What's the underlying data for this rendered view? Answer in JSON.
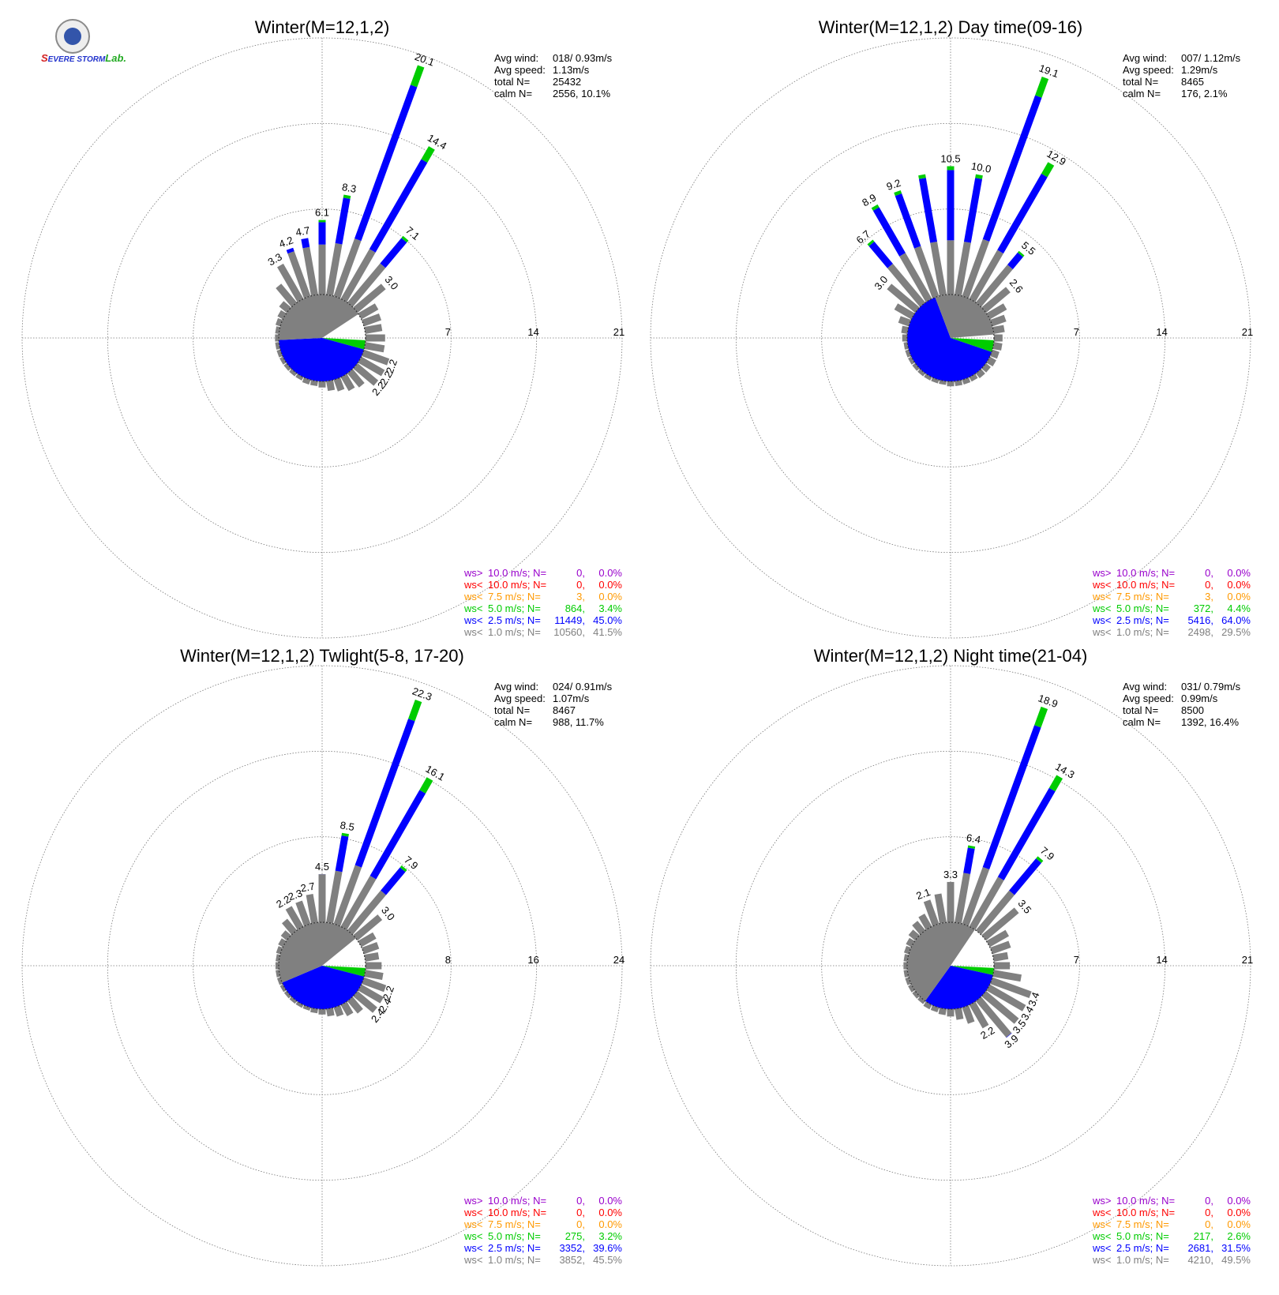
{
  "logo": {
    "brand_a": "S",
    "brand_b": "EVERE STORM",
    "brand_c": "Lab."
  },
  "colors": {
    "calm_gray": "#808080",
    "lt1": "#808080",
    "lt2_5": "#0000ff",
    "lt5": "#00cc00",
    "lt7_5": "#ff9900",
    "lt10": "#ff0000",
    "gt10": "#9900cc"
  },
  "chart_data": [
    {
      "type": "wind-rose",
      "title": "Winter(M=12,1,2)",
      "ring_labels": [
        "7",
        "14",
        "21"
      ],
      "ring_values": [
        7,
        14,
        21
      ],
      "bins_deg": [
        0,
        10,
        20,
        30,
        40,
        50,
        60,
        70,
        80,
        90,
        100,
        110,
        120,
        130,
        140,
        150,
        160,
        170,
        180,
        190,
        200,
        210,
        220,
        230,
        240,
        250,
        260,
        270,
        280,
        290,
        300,
        310,
        320,
        330,
        340,
        350
      ],
      "petals": [
        6.1,
        8.3,
        20.1,
        14.4,
        7.1,
        3.0,
        1.6,
        1.5,
        1.4,
        1.6,
        1.6,
        2.2,
        2.2,
        2.2,
        1.5,
        1.3,
        1.0,
        0.8,
        0.5,
        0.4,
        0.4,
        0.3,
        0.3,
        0.3,
        0.3,
        0.3,
        0.3,
        0.3,
        0.3,
        0.4,
        0.5,
        0.8,
        2.0,
        3.3,
        4.2,
        4.7
      ],
      "petal_labels": [
        {
          "index": 0,
          "text": "6.1"
        },
        {
          "index": 1,
          "text": "8.3"
        },
        {
          "index": 2,
          "text": "20.1"
        },
        {
          "index": 3,
          "text": "14.4"
        },
        {
          "index": 4,
          "text": "7.1"
        },
        {
          "index": 5,
          "text": "3.0"
        },
        {
          "index": 11,
          "text": "2.2"
        },
        {
          "index": 12,
          "text": "2.2"
        },
        {
          "index": 13,
          "text": "2.2"
        },
        {
          "index": 33,
          "text": "3.3"
        },
        {
          "index": 34,
          "text": "4.2"
        },
        {
          "index": 35,
          "text": "4.7"
        }
      ],
      "calm_pie": {
        "lt1": 41.5,
        "lt2_5": 45.0,
        "lt5": 3.4
      },
      "stats": [
        {
          "label": "Avg wind:",
          "value": "018/ 0.93m/s"
        },
        {
          "label": "Avg speed:",
          "value": "1.13m/s"
        },
        {
          "label": "total N=",
          "value": "25432"
        },
        {
          "label": "calm N=",
          "value": "2556,  10.1%"
        }
      ],
      "legend": [
        {
          "op": "ws>",
          "speed": "10.0 m/s; N=",
          "n": "0,",
          "pct": "0.0%",
          "color": "#9900cc"
        },
        {
          "op": "ws<",
          "speed": "10.0 m/s; N=",
          "n": "0,",
          "pct": "0.0%",
          "color": "#ff0000"
        },
        {
          "op": "ws<",
          "speed": "7.5 m/s; N=",
          "n": "3,",
          "pct": "0.0%",
          "color": "#ff9900"
        },
        {
          "op": "ws<",
          "speed": "5.0 m/s; N=",
          "n": "864,",
          "pct": "3.4%",
          "color": "#00cc00"
        },
        {
          "op": "ws<",
          "speed": "2.5 m/s; N=",
          "n": "11449,",
          "pct": "45.0%",
          "color": "#0000ff"
        },
        {
          "op": "ws<",
          "speed": "1.0 m/s; N=",
          "n": "10560,",
          "pct": "41.5%",
          "color": "#808080"
        }
      ]
    },
    {
      "type": "wind-rose",
      "title": "Winter(M=12,1,2) Day time(09-16)",
      "ring_labels": [
        "7",
        "14",
        "21"
      ],
      "ring_values": [
        7,
        14,
        21
      ],
      "bins_deg": [
        0,
        10,
        20,
        30,
        40,
        50,
        60,
        70,
        80,
        90,
        100,
        110,
        120,
        130,
        140,
        150,
        160,
        170,
        180,
        190,
        200,
        210,
        220,
        230,
        240,
        250,
        260,
        270,
        280,
        290,
        300,
        310,
        320,
        330,
        340,
        350
      ],
      "petals": [
        10.5,
        10.0,
        19.1,
        12.9,
        5.5,
        2.6,
        1.6,
        1.2,
        0.9,
        0.7,
        0.7,
        0.6,
        0.6,
        0.5,
        0.5,
        0.4,
        0.4,
        0.4,
        0.4,
        0.3,
        0.3,
        0.3,
        0.3,
        0.3,
        0.3,
        0.3,
        0.3,
        0.4,
        0.5,
        0.9,
        1.6,
        3.0,
        6.7,
        8.9,
        9.2,
        10.0
      ],
      "petal_labels": [
        {
          "index": 0,
          "text": "10.5"
        },
        {
          "index": 1,
          "text": "10.0"
        },
        {
          "index": 2,
          "text": "19.1"
        },
        {
          "index": 3,
          "text": "12.9"
        },
        {
          "index": 4,
          "text": "5.5"
        },
        {
          "index": 5,
          "text": "2.6"
        },
        {
          "index": 31,
          "text": "3.0"
        },
        {
          "index": 32,
          "text": "6.7"
        },
        {
          "index": 33,
          "text": "8.9"
        },
        {
          "index": 34,
          "text": "9.2"
        }
      ],
      "calm_pie": {
        "lt1": 29.5,
        "lt2_5": 64.0,
        "lt5": 4.4
      },
      "stats": [
        {
          "label": "Avg wind:",
          "value": "007/ 1.12m/s"
        },
        {
          "label": "Avg speed:",
          "value": "1.29m/s"
        },
        {
          "label": "total N=",
          "value": "8465"
        },
        {
          "label": "calm N=",
          "value": "176,   2.1%"
        }
      ],
      "legend": [
        {
          "op": "ws>",
          "speed": "10.0 m/s; N=",
          "n": "0,",
          "pct": "0.0%",
          "color": "#9900cc"
        },
        {
          "op": "ws<",
          "speed": "10.0 m/s; N=",
          "n": "0,",
          "pct": "0.0%",
          "color": "#ff0000"
        },
        {
          "op": "ws<",
          "speed": "7.5 m/s; N=",
          "n": "3,",
          "pct": "0.0%",
          "color": "#ff9900"
        },
        {
          "op": "ws<",
          "speed": "5.0 m/s; N=",
          "n": "372,",
          "pct": "4.4%",
          "color": "#00cc00"
        },
        {
          "op": "ws<",
          "speed": "2.5 m/s; N=",
          "n": "5416,",
          "pct": "64.0%",
          "color": "#0000ff"
        },
        {
          "op": "ws<",
          "speed": "1.0 m/s; N=",
          "n": "2498,",
          "pct": "29.5%",
          "color": "#808080"
        }
      ]
    },
    {
      "type": "wind-rose",
      "title": "Winter(M=12,1,2) Twlight(5-8, 17-20)",
      "ring_labels": [
        "8",
        "16",
        "24"
      ],
      "ring_values": [
        8,
        16,
        24
      ],
      "bins_deg": [
        0,
        10,
        20,
        30,
        40,
        50,
        60,
        70,
        80,
        90,
        100,
        110,
        120,
        130,
        140,
        150,
        160,
        170,
        180,
        190,
        200,
        210,
        220,
        230,
        240,
        250,
        260,
        270,
        280,
        290,
        300,
        310,
        320,
        330,
        340,
        350
      ],
      "petals": [
        4.5,
        8.5,
        22.3,
        16.1,
        7.9,
        3.0,
        1.6,
        1.5,
        1.3,
        1.5,
        1.7,
        2.2,
        2.4,
        2.4,
        1.5,
        1.2,
        0.9,
        0.7,
        0.5,
        0.4,
        0.3,
        0.3,
        0.3,
        0.3,
        0.3,
        0.3,
        0.3,
        0.3,
        0.3,
        0.4,
        0.5,
        0.7,
        1.4,
        2.2,
        2.3,
        2.7
      ],
      "petal_labels": [
        {
          "index": 0,
          "text": "4.5"
        },
        {
          "index": 1,
          "text": "8.5"
        },
        {
          "index": 2,
          "text": "22.3"
        },
        {
          "index": 3,
          "text": "16.1"
        },
        {
          "index": 4,
          "text": "7.9"
        },
        {
          "index": 5,
          "text": "3.0"
        },
        {
          "index": 11,
          "text": "2.2"
        },
        {
          "index": 12,
          "text": "2.4"
        },
        {
          "index": 13,
          "text": "2.4"
        },
        {
          "index": 33,
          "text": "2.2"
        },
        {
          "index": 34,
          "text": "2.3"
        },
        {
          "index": 35,
          "text": "2.7"
        }
      ],
      "calm_pie": {
        "lt1": 45.5,
        "lt2_5": 39.6,
        "lt5": 3.2
      },
      "stats": [
        {
          "label": "Avg wind:",
          "value": "024/ 0.91m/s"
        },
        {
          "label": "Avg speed:",
          "value": "1.07m/s"
        },
        {
          "label": "total N=",
          "value": "8467"
        },
        {
          "label": "calm N=",
          "value": "988,   11.7%"
        }
      ],
      "legend": [
        {
          "op": "ws>",
          "speed": "10.0 m/s; N=",
          "n": "0,",
          "pct": "0.0%",
          "color": "#9900cc"
        },
        {
          "op": "ws<",
          "speed": "10.0 m/s; N=",
          "n": "0,",
          "pct": "0.0%",
          "color": "#ff0000"
        },
        {
          "op": "ws<",
          "speed": "7.5 m/s; N=",
          "n": "0,",
          "pct": "0.0%",
          "color": "#ff9900"
        },
        {
          "op": "ws<",
          "speed": "5.0 m/s; N=",
          "n": "275,",
          "pct": "3.2%",
          "color": "#00cc00"
        },
        {
          "op": "ws<",
          "speed": "2.5 m/s; N=",
          "n": "3352,",
          "pct": "39.6%",
          "color": "#0000ff"
        },
        {
          "op": "ws<",
          "speed": "1.0 m/s; N=",
          "n": "3852,",
          "pct": "45.5%",
          "color": "#808080"
        }
      ]
    },
    {
      "type": "wind-rose",
      "title": "Winter(M=12,1,2) Night time(21-04)",
      "ring_labels": [
        "7",
        "14",
        "21"
      ],
      "ring_values": [
        7,
        14,
        21
      ],
      "bins_deg": [
        0,
        10,
        20,
        30,
        40,
        50,
        60,
        70,
        80,
        90,
        100,
        110,
        120,
        130,
        140,
        150,
        160,
        170,
        180,
        190,
        200,
        210,
        220,
        230,
        240,
        250,
        260,
        270,
        280,
        290,
        300,
        310,
        320,
        330,
        340,
        350
      ],
      "petals": [
        3.3,
        6.4,
        18.9,
        14.3,
        7.9,
        3.5,
        1.8,
        1.6,
        1.2,
        1.3,
        2.3,
        3.4,
        3.4,
        3.5,
        3.9,
        2.2,
        1.4,
        0.9,
        0.6,
        0.5,
        0.4,
        0.4,
        0.3,
        0.3,
        0.3,
        0.3,
        0.3,
        0.3,
        0.3,
        0.4,
        0.5,
        0.7,
        1.0,
        1.2,
        2.1,
        2.4
      ],
      "petal_labels": [
        {
          "index": 0,
          "text": "3.3"
        },
        {
          "index": 1,
          "text": "6.4"
        },
        {
          "index": 2,
          "text": "18.9"
        },
        {
          "index": 3,
          "text": "14.3"
        },
        {
          "index": 4,
          "text": "7.9"
        },
        {
          "index": 5,
          "text": "3.5"
        },
        {
          "index": 11,
          "text": "3.4"
        },
        {
          "index": 12,
          "text": "3.4"
        },
        {
          "index": 13,
          "text": "3.5"
        },
        {
          "index": 14,
          "text": "3.9"
        },
        {
          "index": 15,
          "text": "2.2"
        },
        {
          "index": 34,
          "text": "2.1"
        }
      ],
      "calm_pie": {
        "lt1": 49.5,
        "lt2_5": 31.5,
        "lt5": 2.6
      },
      "stats": [
        {
          "label": "Avg wind:",
          "value": "031/ 0.79m/s"
        },
        {
          "label": "Avg speed:",
          "value": "0.99m/s"
        },
        {
          "label": "total N=",
          "value": "8500"
        },
        {
          "label": "calm N=",
          "value": "1392,  16.4%"
        }
      ],
      "legend": [
        {
          "op": "ws>",
          "speed": "10.0 m/s; N=",
          "n": "0,",
          "pct": "0.0%",
          "color": "#9900cc"
        },
        {
          "op": "ws<",
          "speed": "10.0 m/s; N=",
          "n": "0,",
          "pct": "0.0%",
          "color": "#ff0000"
        },
        {
          "op": "ws<",
          "speed": "7.5 m/s; N=",
          "n": "0,",
          "pct": "0.0%",
          "color": "#ff9900"
        },
        {
          "op": "ws<",
          "speed": "5.0 m/s; N=",
          "n": "217,",
          "pct": "2.6%",
          "color": "#00cc00"
        },
        {
          "op": "ws<",
          "speed": "2.5 m/s; N=",
          "n": "2681,",
          "pct": "31.5%",
          "color": "#0000ff"
        },
        {
          "op": "ws<",
          "speed": "1.0 m/s; N=",
          "n": "4210,",
          "pct": "49.5%",
          "color": "#808080"
        }
      ]
    }
  ]
}
